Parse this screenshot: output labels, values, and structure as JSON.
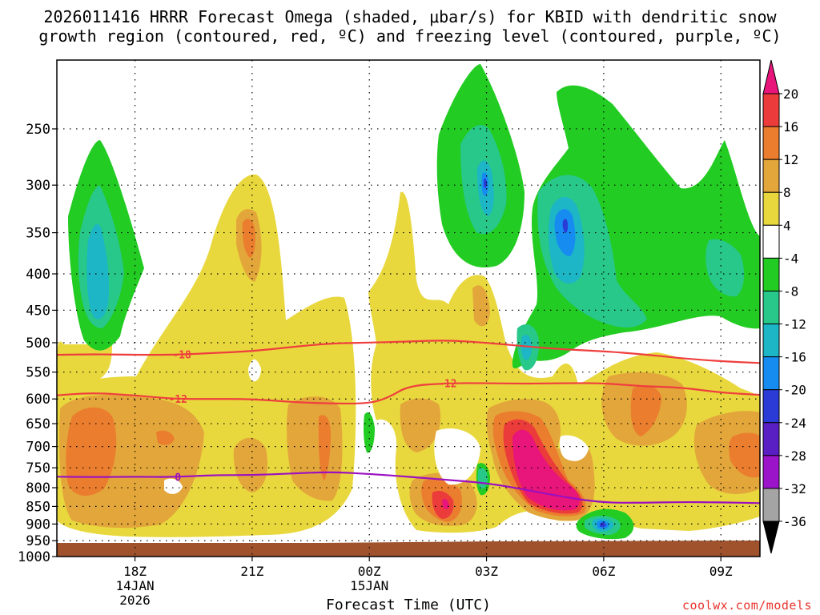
{
  "title": {
    "line1": "2026011416 HRRR Forecast Omega (shaded, μbar/s) for KBID with dendritic snow",
    "line2": "growth region (contoured, red, ºC) and freezing level (contoured, purple, ºC)"
  },
  "credit": "coolwx.com/models",
  "chart_data": {
    "type": "contour",
    "xlabel": "Forecast Time (UTC)",
    "x_hours_range": [
      16,
      34
    ],
    "x_ticks": [
      {
        "hour": 18,
        "label": "18Z",
        "sub": [
          "14JAN",
          "2026"
        ]
      },
      {
        "hour": 21,
        "label": "21Z",
        "sub": []
      },
      {
        "hour": 24,
        "label": "00Z",
        "sub": [
          "15JAN"
        ]
      },
      {
        "hour": 27,
        "label": "03Z",
        "sub": []
      },
      {
        "hour": 30,
        "label": "06Z",
        "sub": []
      },
      {
        "hour": 33,
        "label": "09Z",
        "sub": []
      }
    ],
    "y_scale": "log",
    "y_range": [
      1000,
      200
    ],
    "y_ticks": [
      250,
      300,
      350,
      400,
      450,
      500,
      550,
      600,
      650,
      700,
      750,
      800,
      850,
      900,
      950,
      1000
    ],
    "colorbar": {
      "labels": [
        20,
        16,
        12,
        8,
        4,
        -4,
        -8,
        -12,
        -16,
        -20,
        -24,
        -28,
        -32,
        -36
      ],
      "bins": [
        {
          "lo": 20,
          "hi": null,
          "color": "#e8157a"
        },
        {
          "lo": 16,
          "hi": 20,
          "color": "#ec3b3b"
        },
        {
          "lo": 12,
          "hi": 16,
          "color": "#eb7d2e"
        },
        {
          "lo": 8,
          "hi": 12,
          "color": "#e3a63a"
        },
        {
          "lo": 4,
          "hi": 8,
          "color": "#e8d83d"
        },
        {
          "lo": -4,
          "hi": 4,
          "color": "#ffffff"
        },
        {
          "lo": -8,
          "hi": -4,
          "color": "#22cc22"
        },
        {
          "lo": -12,
          "hi": -8,
          "color": "#28c78a"
        },
        {
          "lo": -16,
          "hi": -12,
          "color": "#1cb6c6"
        },
        {
          "lo": -20,
          "hi": -16,
          "color": "#178cf0"
        },
        {
          "lo": -24,
          "hi": -20,
          "color": "#2a3bd6"
        },
        {
          "lo": -28,
          "hi": -24,
          "color": "#5a1fc2"
        },
        {
          "lo": -32,
          "hi": -28,
          "color": "#9b14c9"
        },
        {
          "lo": -36,
          "hi": -32,
          "color": "#a4a4a4"
        },
        {
          "lo": null,
          "hi": -36,
          "color": "#000000"
        }
      ]
    },
    "contours": [
      {
        "name": "-18",
        "color": "#ef3e3e",
        "label_hour": 19.2,
        "points": [
          [
            16,
            520
          ],
          [
            17,
            519
          ],
          [
            18,
            520
          ],
          [
            19,
            520
          ],
          [
            20,
            517
          ],
          [
            21,
            514
          ],
          [
            22,
            507
          ],
          [
            23,
            501
          ],
          [
            24,
            500
          ],
          [
            25,
            498
          ],
          [
            26,
            496
          ],
          [
            27,
            500
          ],
          [
            28,
            506
          ],
          [
            29,
            511
          ],
          [
            30,
            514
          ],
          [
            31,
            519
          ],
          [
            32,
            526
          ],
          [
            33,
            531
          ],
          [
            34,
            534
          ]
        ]
      },
      {
        "name": "-12",
        "color": "#ef3e3e",
        "label_hour": 26.0,
        "label2_hour": 19.1,
        "points": [
          [
            16,
            593
          ],
          [
            16.9,
            588
          ],
          [
            18,
            593
          ],
          [
            19,
            600
          ],
          [
            20,
            600
          ],
          [
            21,
            600
          ],
          [
            22,
            606
          ],
          [
            23,
            609
          ],
          [
            24,
            609
          ],
          [
            24.5,
            597
          ],
          [
            25,
            575
          ],
          [
            26,
            570
          ],
          [
            27,
            570
          ],
          [
            28,
            571
          ],
          [
            29,
            570
          ],
          [
            30,
            570
          ],
          [
            31,
            576
          ],
          [
            32,
            578
          ],
          [
            33,
            588
          ],
          [
            34,
            592
          ]
        ]
      },
      {
        "name": "0",
        "color": "#9b10c0",
        "label_hour": 19.1,
        "kind": "freezing",
        "points": [
          [
            16,
            772
          ],
          [
            17,
            773
          ],
          [
            18,
            772
          ],
          [
            19,
            773
          ],
          [
            20,
            768
          ],
          [
            21,
            768
          ],
          [
            22,
            764
          ],
          [
            23,
            760
          ],
          [
            24,
            765
          ],
          [
            25,
            772
          ],
          [
            26,
            780
          ],
          [
            27,
            788
          ],
          [
            28,
            805
          ],
          [
            29,
            825
          ],
          [
            30,
            840
          ],
          [
            31,
            840
          ],
          [
            32,
            838
          ],
          [
            33,
            839
          ],
          [
            34,
            841
          ]
        ]
      }
    ],
    "omega_features": [
      {
        "color_bin": -8,
        "desc": "ascent plume 17Z",
        "center_hour": 17.0,
        "center_p": 390
      },
      {
        "color_bin": -8,
        "desc": "ascent plume 03Z",
        "center_hour": 27.0,
        "center_p": 310
      },
      {
        "color_bin": -8,
        "desc": "ascent plume 05Z-10Z",
        "center_hour": 31.0,
        "center_p": 340
      },
      {
        "color_bin": 20,
        "desc": "subsidence maximum 05Z",
        "center_hour": 28.8,
        "center_p": 830
      },
      {
        "color_bin": -24,
        "desc": "ascent core 06Z near surface",
        "center_hour": 30.0,
        "center_p": 950
      }
    ]
  }
}
